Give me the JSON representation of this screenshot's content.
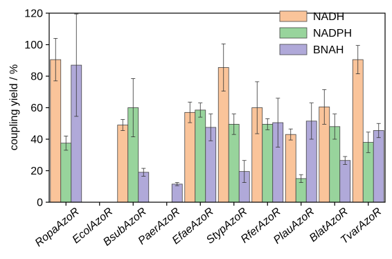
{
  "chart_data": {
    "type": "bar",
    "ylabel": "coupling yield / %",
    "ylim": [
      0,
      120
    ],
    "yticks": [
      0,
      20,
      40,
      60,
      80,
      100,
      120
    ],
    "categories": [
      "RopaAzoR",
      "EcolAzoR",
      "BsubAzoR",
      "PaerAzoR",
      "EfaeAzoR",
      "StypAzoR",
      "RferAzoR",
      "PlauAzoR",
      "BlatAzoR",
      "TvarAzoR"
    ],
    "series": [
      {
        "name": "NADH",
        "color": "#FAC49A",
        "values": [
          90.5,
          null,
          49,
          null,
          57,
          85.5,
          60,
          43,
          60.5,
          90.5
        ],
        "errors": [
          13.5,
          null,
          3.5,
          null,
          6.5,
          15,
          16.5,
          3.5,
          11,
          9
        ]
      },
      {
        "name": "NADPH",
        "color": "#98D49C",
        "values": [
          37.5,
          null,
          60,
          null,
          58.5,
          49.5,
          49.5,
          15,
          48,
          38
        ],
        "errors": [
          4.5,
          null,
          18.5,
          null,
          4.5,
          6.5,
          3.5,
          2.5,
          8,
          6.5
        ]
      },
      {
        "name": "BNAH",
        "color": "#B0A9D9",
        "values": [
          87,
          null,
          19,
          11.5,
          47.5,
          19.5,
          50.5,
          51.5,
          26.5,
          45.5
        ],
        "errors": [
          32.5,
          null,
          2.5,
          1,
          8.5,
          7,
          15.5,
          11.5,
          2.5,
          4.5
        ]
      }
    ],
    "legend": "top-right"
  }
}
